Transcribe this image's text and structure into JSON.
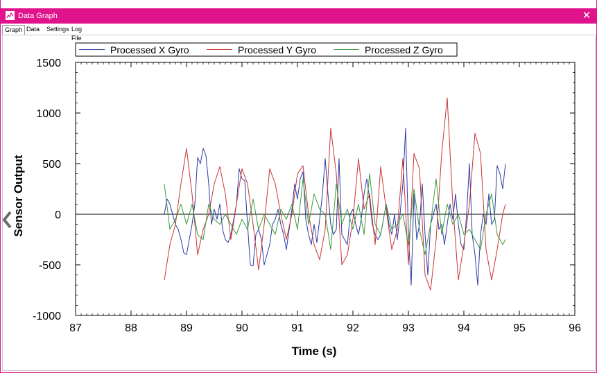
{
  "window": {
    "title": "Data Graph",
    "close_glyph": "✕",
    "icon": "graph-window-icon"
  },
  "tabs": [
    {
      "label": "Graph",
      "active": true
    },
    {
      "label": "Data",
      "active": false
    },
    {
      "label": "Settings",
      "active": false
    },
    {
      "label": "Log File",
      "active": false
    }
  ],
  "collapse_icon": "chevron-left-icon",
  "chart_data": {
    "type": "line",
    "title": "",
    "xlabel": "Time (s)",
    "ylabel": "Sensor Output",
    "xlim": [
      87,
      96
    ],
    "ylim": [
      -1000,
      1500
    ],
    "x_ticks": [
      87,
      88,
      89,
      90,
      91,
      92,
      93,
      94,
      95,
      96
    ],
    "y_ticks": [
      -1000,
      -500,
      0,
      500,
      1000,
      1500
    ],
    "x_minor_step": 0.1,
    "y_minor_step": 100,
    "grid": false,
    "zero_line": true,
    "legend_position": "top",
    "series": [
      {
        "name": "Processed X Gyro",
        "color": "#2b3aa6",
        "x": [
          88.6,
          88.65,
          88.7,
          88.75,
          88.8,
          88.85,
          88.9,
          88.95,
          89.0,
          89.05,
          89.1,
          89.15,
          89.2,
          89.25,
          89.3,
          89.35,
          89.4,
          89.45,
          89.5,
          89.55,
          89.6,
          89.65,
          89.7,
          89.75,
          89.8,
          89.85,
          89.9,
          89.95,
          90.0,
          90.05,
          90.1,
          90.15,
          90.2,
          90.25,
          90.3,
          90.35,
          90.4,
          90.45,
          90.5,
          90.55,
          90.6,
          90.65,
          90.7,
          90.75,
          90.8,
          90.85,
          90.9,
          90.95,
          91.0,
          91.05,
          91.1,
          91.15,
          91.2,
          91.25,
          91.3,
          91.35,
          91.4,
          91.45,
          91.5,
          91.55,
          91.6,
          91.65,
          91.7,
          91.75,
          91.8,
          91.85,
          91.9,
          91.95,
          92.0,
          92.05,
          92.1,
          92.15,
          92.2,
          92.25,
          92.3,
          92.35,
          92.4,
          92.45,
          92.5,
          92.55,
          92.6,
          92.65,
          92.7,
          92.75,
          92.8,
          92.85,
          92.9,
          92.95,
          93.0,
          93.05,
          93.1,
          93.15,
          93.2,
          93.25,
          93.3,
          93.35,
          93.4,
          93.45,
          93.5,
          93.55,
          93.6,
          93.65,
          93.7,
          93.75,
          93.8,
          93.85,
          93.9,
          93.95,
          94.0,
          94.05,
          94.1,
          94.15,
          94.2,
          94.25,
          94.3,
          94.35,
          94.4,
          94.45,
          94.5,
          94.55,
          94.6,
          94.65,
          94.7,
          94.75
        ],
        "values": [
          0,
          150,
          100,
          0,
          -100,
          -150,
          -250,
          -380,
          -400,
          -250,
          -100,
          100,
          560,
          500,
          650,
          580,
          300,
          -100,
          50,
          -50,
          100,
          -150,
          -250,
          -280,
          -200,
          -50,
          100,
          450,
          350,
          330,
          -100,
          -500,
          -510,
          -200,
          -150,
          -250,
          -500,
          -400,
          -300,
          -100,
          -50,
          50,
          -100,
          -200,
          -350,
          -150,
          50,
          300,
          150,
          350,
          420,
          -50,
          -200,
          -300,
          -100,
          -280,
          -50,
          200,
          550,
          200,
          -100,
          -200,
          -150,
          550,
          -200,
          -250,
          -300,
          0,
          50,
          -100,
          -200,
          -50,
          200,
          350,
          150,
          -100,
          -200,
          -250,
          -200,
          -50,
          100,
          -100,
          -200,
          0,
          -250,
          0,
          300,
          850,
          -200,
          -700,
          200,
          -250,
          -100,
          300,
          -200,
          -600,
          -100,
          0,
          100,
          -150,
          -100,
          -300,
          -100,
          100,
          -50,
          200,
          -100,
          -300,
          -350,
          0,
          500,
          -200,
          -400,
          -700,
          -200,
          0,
          -100,
          200,
          -100,
          -50,
          480,
          400,
          250,
          500
        ]
      },
      {
        "name": "Processed Y Gyro",
        "color": "#cc3333",
        "x": [
          88.6,
          88.7,
          88.8,
          88.9,
          89.0,
          89.1,
          89.2,
          89.3,
          89.4,
          89.5,
          89.6,
          89.7,
          89.8,
          89.9,
          90.0,
          90.1,
          90.2,
          90.3,
          90.4,
          90.5,
          90.6,
          90.7,
          90.8,
          90.9,
          91.0,
          91.1,
          91.2,
          91.3,
          91.4,
          91.5,
          91.6,
          91.7,
          91.8,
          91.9,
          92.0,
          92.1,
          92.2,
          92.3,
          92.4,
          92.5,
          92.6,
          92.7,
          92.8,
          92.9,
          93.0,
          93.1,
          93.2,
          93.3,
          93.4,
          93.5,
          93.6,
          93.7,
          93.8,
          93.9,
          94.0,
          94.1,
          94.2,
          94.3,
          94.4,
          94.5,
          94.6,
          94.7,
          94.75
        ],
        "values": [
          -650,
          -300,
          -100,
          300,
          650,
          200,
          -400,
          -150,
          0,
          300,
          470,
          200,
          -250,
          100,
          450,
          300,
          -100,
          -550,
          -100,
          450,
          300,
          0,
          -250,
          0,
          400,
          480,
          0,
          -300,
          -450,
          -150,
          850,
          400,
          -500,
          -400,
          -50,
          550,
          50,
          200,
          -300,
          470,
          50,
          -350,
          -150,
          550,
          -500,
          600,
          450,
          -600,
          -750,
          -250,
          600,
          1150,
          100,
          -650,
          -300,
          100,
          800,
          600,
          -350,
          -650,
          -350,
          0,
          100
        ]
      },
      {
        "name": "Processed Z Gyro",
        "color": "#3a9a3a",
        "x": [
          88.6,
          88.7,
          88.8,
          88.9,
          89.0,
          89.1,
          89.2,
          89.3,
          89.4,
          89.5,
          89.6,
          89.7,
          89.8,
          89.9,
          90.0,
          90.1,
          90.2,
          90.3,
          90.4,
          90.5,
          90.6,
          90.7,
          90.8,
          90.9,
          91.0,
          91.1,
          91.2,
          91.3,
          91.4,
          91.5,
          91.6,
          91.7,
          91.8,
          91.9,
          92.0,
          92.1,
          92.2,
          92.3,
          92.4,
          92.5,
          92.6,
          92.7,
          92.8,
          92.9,
          93.0,
          93.1,
          93.2,
          93.3,
          93.4,
          93.5,
          93.6,
          93.7,
          93.8,
          93.9,
          94.0,
          94.1,
          94.2,
          94.3,
          94.4,
          94.5,
          94.6,
          94.7,
          94.75
        ],
        "values": [
          300,
          -150,
          -50,
          100,
          -100,
          100,
          -200,
          -250,
          100,
          -50,
          -100,
          0,
          -100,
          -200,
          -50,
          -150,
          150,
          -150,
          0,
          -100,
          -200,
          50,
          -50,
          100,
          -150,
          350,
          -100,
          200,
          50,
          0,
          -350,
          300,
          -100,
          50,
          -150,
          100,
          -200,
          400,
          -100,
          -200,
          100,
          -150,
          -100,
          0,
          -300,
          250,
          -150,
          -400,
          -100,
          350,
          -200,
          100,
          -100,
          0,
          -200,
          -150,
          -250,
          -350,
          0,
          200,
          -200,
          -300,
          -250
        ]
      }
    ]
  }
}
